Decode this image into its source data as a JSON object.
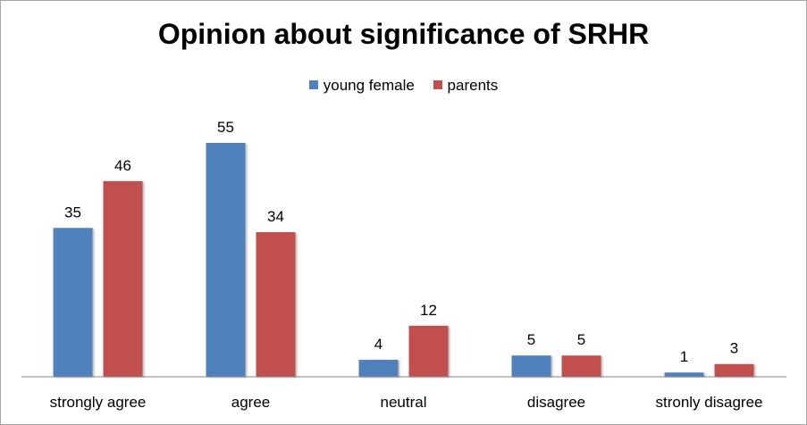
{
  "chart_data": {
    "type": "bar",
    "title": "Opinion about significance of SRHR",
    "categories": [
      "strongly agree",
      "agree",
      "neutral",
      "disagree",
      "stronly disagree"
    ],
    "series": [
      {
        "name": "young female",
        "values": [
          35,
          55,
          4,
          5,
          1
        ],
        "color": "#4f81bd"
      },
      {
        "name": "parents",
        "values": [
          46,
          34,
          12,
          5,
          3
        ],
        "color": "#c0504d"
      }
    ],
    "ylim": [
      0,
      60
    ],
    "grid": false,
    "legend": "top-center",
    "data_labels": true
  }
}
